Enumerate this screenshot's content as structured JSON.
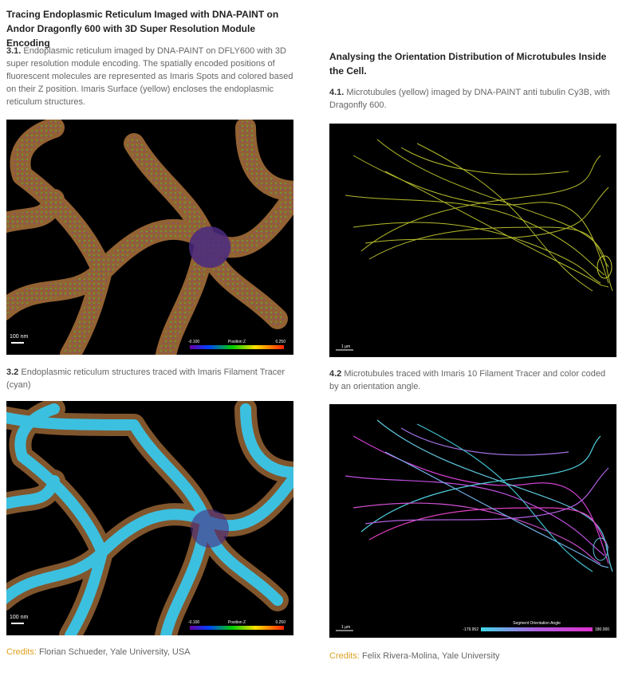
{
  "left": {
    "title": "Tracing Endoplasmic Reticulum Imaged with DNA-PAINT on Andor Dragonfly 600 with 3D Super Resolution Module Encoding",
    "figures": [
      {
        "label": "3.1.",
        "caption": "Endoplasmic reticulum imaged by DNA-PAINT on DFLY600 with 3D super resolution module encoding. The spatially encoded positions of fluorescent molecules are represented as Imaris Spots and colored based on their Z position. Imaris Surface (yellow) encloses the endoplasmic reticulum structures.",
        "scale": "100 nm",
        "colorbar": {
          "min": "-0.100",
          "title": "Position Z",
          "max": "0.250"
        }
      },
      {
        "label": "3.2",
        "caption": "Endoplasmic reticulum structures traced with Imaris Filament Tracer (cyan)",
        "scale": "100 nm",
        "colorbar": {
          "min": "-0.100",
          "title": "Position Z",
          "max": "0.250"
        }
      }
    ],
    "credits": {
      "label": "Credits:",
      "text": "Florian Schueder, Yale University, USA"
    }
  },
  "right": {
    "title": "Analysing the Orientation Distribution of Microtubules Inside the Cell.",
    "figures": [
      {
        "label": "4.1.",
        "caption": "Microtubules (yellow) imaged by DNA-PAINT anti tubulin Cy3B, with Dragonfly 600.",
        "scale": "1 µm"
      },
      {
        "label": "4.2",
        "caption": "Microtubules traced with Imaris 10 Filament Tracer and color coded by an orientation angle.",
        "scale": "1 µm",
        "colorbar": {
          "min": "-179.952",
          "title": "Segment Orientation Angle",
          "max": "180.000"
        }
      }
    ],
    "credits": {
      "label": "Credits:",
      "text": "Felix Rivera-Molina, Yale University"
    }
  }
}
